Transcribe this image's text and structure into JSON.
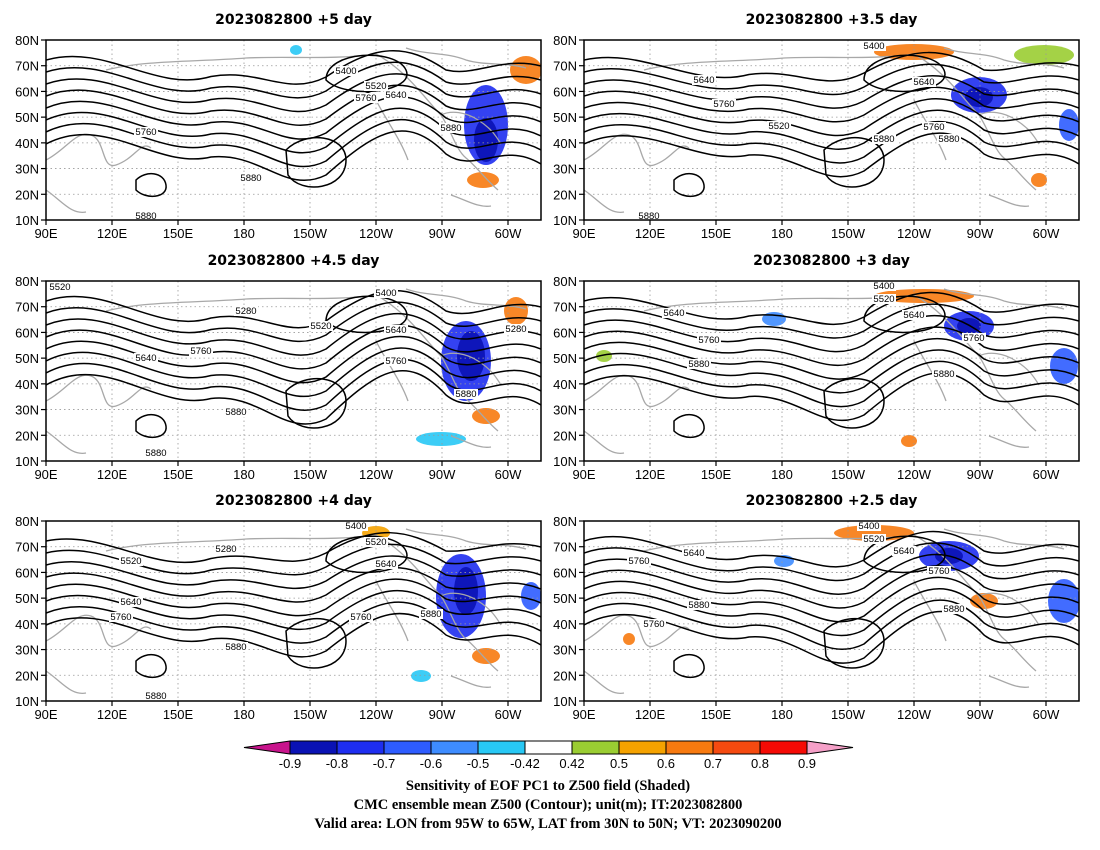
{
  "panels": [
    {
      "id": "p5",
      "title": "2023082800  +5 day",
      "contour_labels": [
        "5400",
        "5520",
        "5640",
        "5760",
        "5760",
        "5880",
        "5880",
        "5880"
      ]
    },
    {
      "id": "p35",
      "title": "2023082800  +3.5 day",
      "contour_labels": [
        "5400",
        "5640",
        "5640",
        "5760",
        "5520",
        "5760",
        "5880",
        "5880",
        "5880"
      ]
    },
    {
      "id": "p45",
      "title": "2023082800  +4.5 day",
      "contour_labels": [
        "5520",
        "5400",
        "5280",
        "5520",
        "5640",
        "5280",
        "5640",
        "5760",
        "5760",
        "5880",
        "5880",
        "5880"
      ]
    },
    {
      "id": "p3",
      "title": "2023082800  +3 day",
      "contour_labels": [
        "5400",
        "5520",
        "5640",
        "5640",
        "5760",
        "5760",
        "5880",
        "5880"
      ]
    },
    {
      "id": "p4",
      "title": "2023082800  +4 day",
      "contour_labels": [
        "5400",
        "5280",
        "5520",
        "5520",
        "5640",
        "5640",
        "5760",
        "5760",
        "5880",
        "5880",
        "5880"
      ]
    },
    {
      "id": "p25",
      "title": "2023082800  +2.5 day",
      "contour_labels": [
        "5400",
        "5520",
        "5640",
        "5640",
        "5760",
        "5760",
        "5880",
        "5760",
        "5880"
      ]
    }
  ],
  "axes": {
    "lat_labels": [
      "80N",
      "70N",
      "60N",
      "50N",
      "40N",
      "30N",
      "20N",
      "10N"
    ],
    "lon_labels": [
      "90E",
      "120E",
      "150E",
      "180",
      "150W",
      "120W",
      "90W",
      "60W"
    ]
  },
  "colorbar": {
    "ticks": [
      "-0.9",
      "-0.8",
      "-0.7",
      "-0.6",
      "-0.5",
      "-0.42",
      "0.42",
      "0.5",
      "0.6",
      "0.7",
      "0.8",
      "0.9"
    ],
    "colors": [
      "#0a12b4",
      "#1e2ef0",
      "#2e5cff",
      "#3e8cff",
      "#28c8f5",
      "#ffffff",
      "#9acd32",
      "#f5a200",
      "#f77a10",
      "#f54a10",
      "#f50a05"
    ],
    "low_arrow_color": "#c8148c",
    "high_arrow_color": "#f5a0c8"
  },
  "captions": [
    "Sensitivity of EOF PC1 to Z500 field (Shaded)",
    "CMC ensemble mean Z500 (Contour); unit(m); IT:2023082800",
    "Valid area: LON from 95W to 65W, LAT from 30N to 50N; VT: 2023090200"
  ]
}
